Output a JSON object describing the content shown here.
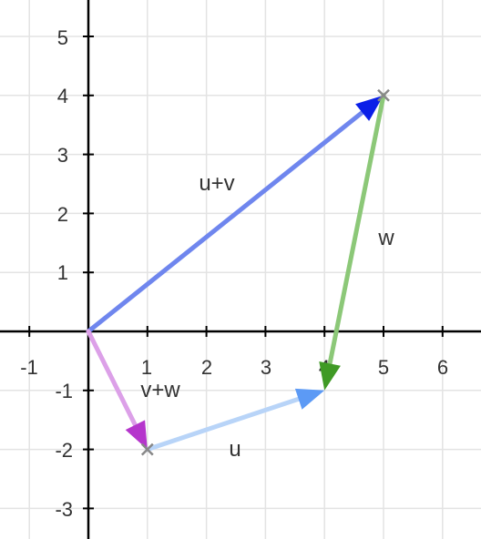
{
  "axes": {
    "x_range": [
      -2,
      6.6
    ],
    "y_range": [
      -3.5,
      5.6
    ],
    "x_tick_labels": [
      "-1",
      "1",
      "2",
      "3",
      "4",
      "5",
      "6"
    ],
    "y_tick_labels": [
      "5",
      "4",
      "3",
      "2",
      "1",
      "-1",
      "-2",
      "-3"
    ],
    "grid": true,
    "grid_color": "#e3e3e3",
    "axis_color": "#000000"
  },
  "vectors": [
    {
      "id": "u-plus-v",
      "label": "u+v",
      "from": [
        0,
        0
      ],
      "to": [
        5,
        4
      ],
      "stroke": "#6f86ee",
      "head": "#0a1fe8"
    },
    {
      "id": "w",
      "label": "w",
      "from": [
        5,
        4
      ],
      "to": [
        4,
        -1
      ],
      "stroke": "#8cc878",
      "head": "#3f9a25"
    },
    {
      "id": "v-plus-w",
      "label": "v+w",
      "from": [
        0,
        0
      ],
      "to": [
        1,
        -2
      ],
      "stroke": "#dca0e8",
      "head": "#b535cc"
    },
    {
      "id": "u",
      "label": "u",
      "from": [
        1,
        -2
      ],
      "to": [
        4,
        -1
      ],
      "stroke": "#b8d4f8",
      "head": "#5c9af5"
    }
  ],
  "points": [
    {
      "id": "point-5-4",
      "at": [
        5,
        4
      ]
    },
    {
      "id": "point-1-neg2",
      "at": [
        1,
        -2
      ]
    },
    {
      "id": "point-origin",
      "at": [
        0,
        0
      ]
    }
  ],
  "point_color": "#888888"
}
